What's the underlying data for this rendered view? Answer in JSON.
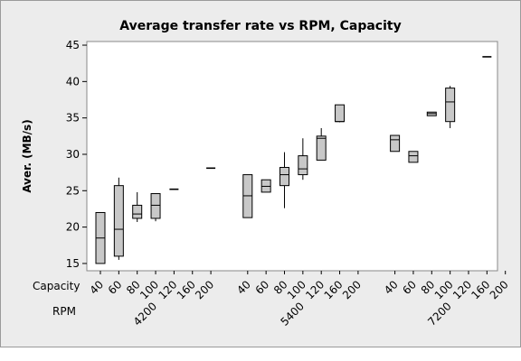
{
  "chart_data": {
    "type": "boxplot",
    "title": "Average transfer rate vs RPM, Capacity",
    "ylabel": "Aver. (MB/s)",
    "ylim": [
      14,
      45.5
    ],
    "yticks": [
      15,
      20,
      25,
      30,
      35,
      40,
      45
    ],
    "row_labels": [
      "Capacity",
      "RPM"
    ],
    "capacity_levels": [
      "40",
      "60",
      "80",
      "100",
      "120",
      "160",
      "200"
    ],
    "groups": [
      {
        "rpm": "4200",
        "boxes": [
          {
            "capacity": "40",
            "min": 15,
            "q1": 15,
            "median": 18.5,
            "q3": 22,
            "max": 22
          },
          {
            "capacity": "60",
            "min": 15.5,
            "q1": 16,
            "median": 19.7,
            "q3": 25.7,
            "max": 26.8
          },
          {
            "capacity": "80",
            "min": 20.7,
            "q1": 21.2,
            "median": 21.8,
            "q3": 23,
            "max": 24.8
          },
          {
            "capacity": "100",
            "min": 20.8,
            "q1": 21.2,
            "median": 23,
            "q3": 24.6,
            "max": 24.6
          },
          {
            "capacity": "120",
            "min": 25.2,
            "q1": 25.2,
            "median": 25.2,
            "q3": 25.2,
            "max": 25.2
          },
          null,
          {
            "capacity": "200",
            "min": 28.1,
            "q1": 28.1,
            "median": 28.1,
            "q3": 28.1,
            "max": 28.1
          }
        ]
      },
      {
        "rpm": "5400",
        "boxes": [
          {
            "capacity": "40",
            "min": 21.3,
            "q1": 21.3,
            "median": 24.3,
            "q3": 27.2,
            "max": 27.2
          },
          {
            "capacity": "60",
            "min": 24.8,
            "q1": 24.8,
            "median": 25.6,
            "q3": 26.5,
            "max": 26.5
          },
          {
            "capacity": "80",
            "min": 22.6,
            "q1": 25.7,
            "median": 27.2,
            "q3": 28.2,
            "max": 30.3
          },
          {
            "capacity": "100",
            "min": 26.5,
            "q1": 27.2,
            "median": 28,
            "q3": 29.8,
            "max": 32.2
          },
          {
            "capacity": "120",
            "min": 29.2,
            "q1": 29.2,
            "median": 32.2,
            "q3": 32.5,
            "max": 33.6
          },
          {
            "capacity": "160",
            "min": 34.4,
            "q1": 34.5,
            "median": 34.5,
            "q3": 36.8,
            "max": 36.8
          },
          null
        ]
      },
      {
        "rpm": "7200",
        "boxes": [
          {
            "capacity": "40",
            "min": 30.4,
            "q1": 30.4,
            "median": 32,
            "q3": 32.6,
            "max": 32.6
          },
          {
            "capacity": "60",
            "min": 28.9,
            "q1": 28.9,
            "median": 29.8,
            "q3": 30.4,
            "max": 30.4
          },
          {
            "capacity": "80",
            "min": 35.3,
            "q1": 35.3,
            "median": 35.6,
            "q3": 35.8,
            "max": 35.8
          },
          {
            "capacity": "100",
            "min": 33.6,
            "q1": 34.5,
            "median": 37.2,
            "q3": 39.1,
            "max": 39.4
          },
          null,
          {
            "capacity": "160",
            "min": 43.4,
            "q1": 43.4,
            "median": 43.4,
            "q3": 43.4,
            "max": 43.4
          },
          null
        ]
      }
    ],
    "colors": {
      "box_fill": "#c8c8c8",
      "stroke": "#000000",
      "background": "#ececec",
      "plot_bg": "#ffffff"
    }
  }
}
